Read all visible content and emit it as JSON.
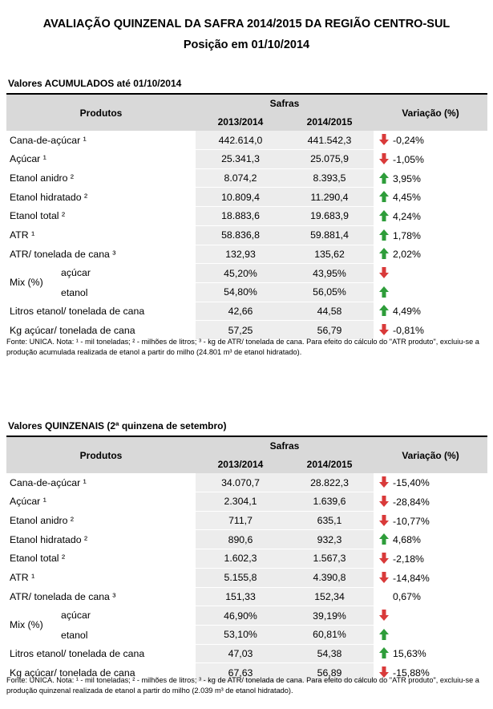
{
  "title_line1": "AVALIAÇÃO QUINZENAL DA SAFRA 2014/2015 DA REGIÃO CENTRO-SUL",
  "title_line2": "Posição em 01/10/2014",
  "colors": {
    "up": "#2e9d3a",
    "down": "#d93a3a",
    "header_bg": "#d9d9d9"
  },
  "headers": {
    "produtos": "Produtos",
    "safras": "Safras",
    "y1": "2013/2014",
    "y2": "2014/2015",
    "variacao": "Variação (%)"
  },
  "sections": [
    {
      "title": "Valores ACUMULADOS até 01/10/2014",
      "rows": [
        {
          "label": "Cana-de-açúcar ¹",
          "v1": "442.614,0",
          "v2": "441.542,3",
          "dir": "down",
          "var": "-0,24%"
        },
        {
          "label": "Açúcar ¹",
          "v1": "25.341,3",
          "v2": "25.075,9",
          "dir": "down",
          "var": "-1,05%"
        },
        {
          "label": "Etanol anidro ²",
          "v1": "8.074,2",
          "v2": "8.393,5",
          "dir": "up",
          "var": "3,95%"
        },
        {
          "label": "Etanol hidratado ²",
          "v1": "10.809,4",
          "v2": "11.290,4",
          "dir": "up",
          "var": "4,45%"
        },
        {
          "label": "Etanol total ²",
          "v1": "18.883,6",
          "v2": "19.683,9",
          "dir": "up",
          "var": "4,24%"
        },
        {
          "label": "ATR ¹",
          "v1": "58.836,8",
          "v2": "59.881,4",
          "dir": "up",
          "var": "1,78%"
        },
        {
          "label": "ATR/ tonelada de cana ³",
          "v1": "132,93",
          "v2": "135,62",
          "dir": "up",
          "var": "2,02%"
        }
      ],
      "mix": {
        "label": "Mix (%)",
        "acucar_label": "açúcar",
        "acucar_v1": "45,20%",
        "acucar_v2": "43,95%",
        "acucar_dir": "down",
        "etanol_label": "etanol",
        "etanol_v1": "54,80%",
        "etanol_v2": "56,05%",
        "etanol_dir": "up"
      },
      "rows2": [
        {
          "label": "Litros etanol/ tonelada de cana",
          "v1": "42,66",
          "v2": "44,58",
          "dir": "up",
          "var": "4,49%"
        },
        {
          "label": "Kg açúcar/ tonelada de cana",
          "v1": "57,25",
          "v2": "56,79",
          "dir": "down",
          "var": "-0,81%"
        }
      ],
      "source": "Fonte: UNICA. Nota: ¹ - mil toneladas; ² - milhões de litros; ³ - kg de ATR/ tonelada de cana. Para efeito do cálculo do \"ATR produto\", excluiu-se a produção acumulada realizada de etanol a partir do milho (24.801 m³ de etanol hidratado)."
    },
    {
      "title": "Valores QUINZENAIS (2ª quinzena de setembro)",
      "rows": [
        {
          "label": "Cana-de-açúcar ¹",
          "v1": "34.070,7",
          "v2": "28.822,3",
          "dir": "down",
          "var": "-15,40%"
        },
        {
          "label": "Açúcar ¹",
          "v1": "2.304,1",
          "v2": "1.639,6",
          "dir": "down",
          "var": "-28,84%"
        },
        {
          "label": "Etanol anidro ²",
          "v1": "711,7",
          "v2": "635,1",
          "dir": "down",
          "var": "-10,77%"
        },
        {
          "label": "Etanol hidratado ²",
          "v1": "890,6",
          "v2": "932,3",
          "dir": "up",
          "var": "4,68%"
        },
        {
          "label": "Etanol total ²",
          "v1": "1.602,3",
          "v2": "1.567,3",
          "dir": "down",
          "var": "-2,18%"
        },
        {
          "label": "ATR ¹",
          "v1": "5.155,8",
          "v2": "4.390,8",
          "dir": "down",
          "var": "-14,84%"
        },
        {
          "label": "ATR/ tonelada de cana ³",
          "v1": "151,33",
          "v2": "152,34",
          "dir": "none",
          "var": "0,67%"
        }
      ],
      "mix": {
        "label": "Mix (%)",
        "acucar_label": "açúcar",
        "acucar_v1": "46,90%",
        "acucar_v2": "39,19%",
        "acucar_dir": "down",
        "etanol_label": "etanol",
        "etanol_v1": "53,10%",
        "etanol_v2": "60,81%",
        "etanol_dir": "up"
      },
      "rows2": [
        {
          "label": "Litros etanol/ tonelada de cana",
          "v1": "47,03",
          "v2": "54,38",
          "dir": "up",
          "var": "15,63%"
        },
        {
          "label": "Kg açúcar/ tonelada de cana",
          "v1": "67,63",
          "v2": "56,89",
          "dir": "down",
          "var": "-15,88%"
        }
      ],
      "source": "Fonte: UNICA. Nota: ¹ - mil toneladas; ² - milhões de litros; ³ - kg de ATR/ tonelada de cana. Para efeito do cálculo do \"ATR produto\", excluiu-se a produção quinzenal realizada de etanol a partir do milho (2.039 m³ de etanol hidratado)."
    }
  ]
}
